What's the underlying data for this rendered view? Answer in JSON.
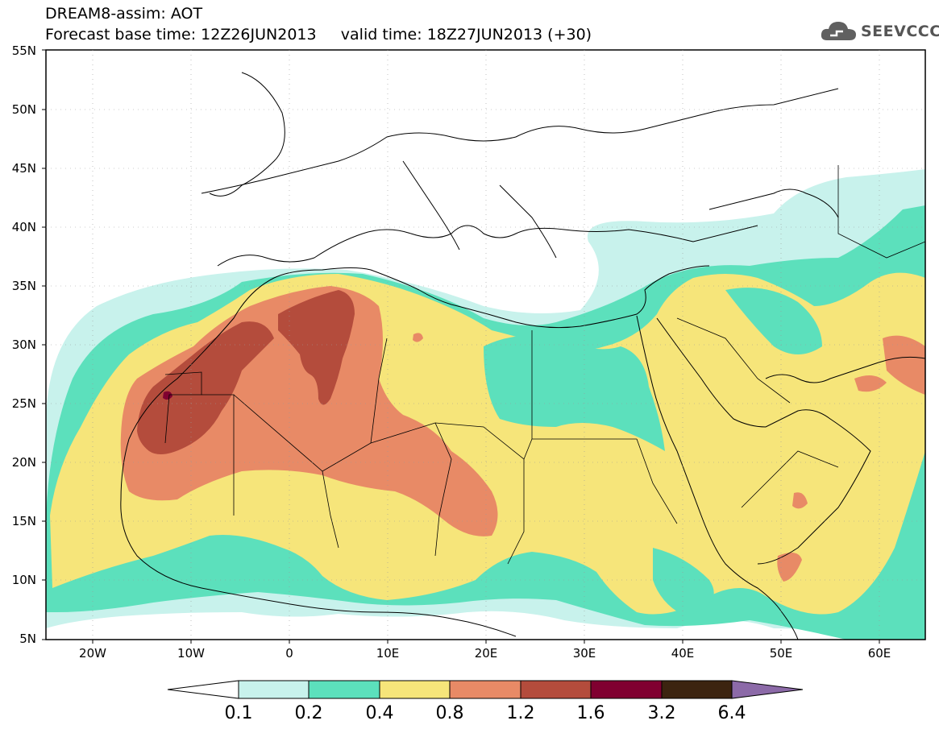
{
  "header": {
    "title_line1": "DREAM8-assim: AOT",
    "title_line2": "Forecast base time: 12Z26JUN2013     valid time: 18Z27JUN2013 (+30)",
    "logo_text": "SEEVCCC"
  },
  "map": {
    "lat_labels": [
      "55N",
      "50N",
      "45N",
      "40N",
      "35N",
      "30N",
      "25N",
      "20N",
      "15N",
      "10N",
      "5N"
    ],
    "lon_labels": [
      "20W",
      "10W",
      "0",
      "10E",
      "20E",
      "30E",
      "40E",
      "50E",
      "60E"
    ]
  },
  "legend": {
    "labels": [
      "0.1",
      "0.2",
      "0.4",
      "0.8",
      "1.2",
      "1.6",
      "3.2",
      "6.4"
    ],
    "colors": [
      "#c8f2ec",
      "#5ce0bc",
      "#f6e57a",
      "#e88a66",
      "#b44c3c",
      "#800030",
      "#3c2410",
      "#8c6aa8"
    ]
  },
  "colors": {
    "aot_0_1": "#c8f2ec",
    "aot_0_2": "#5ce0bc",
    "aot_0_4": "#f6e57a",
    "aot_0_8": "#e88a66",
    "aot_1_2": "#b44c3c",
    "aot_1_6": "#800030"
  }
}
